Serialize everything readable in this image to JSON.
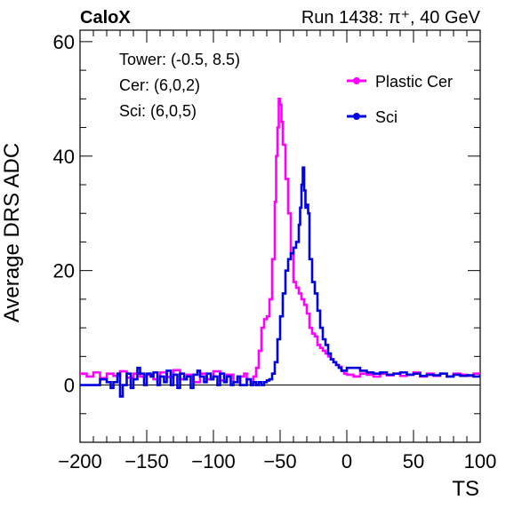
{
  "header": {
    "brand": "CaloX",
    "run_text": "Run 1438: π⁺, 40 GeV"
  },
  "annotations": [
    "Tower: (-0.5, 8.5)",
    "Cer: (6,0,2)",
    "Sci: (6,0,5)"
  ],
  "colors": {
    "plastic_cer": "#ff00ff",
    "sci": "#0000e0"
  },
  "chart_data": {
    "type": "line",
    "title": "",
    "xlabel": "TS",
    "ylabel": "Average DRS ADC",
    "xlim": [
      -200,
      100
    ],
    "ylim": [
      -10,
      62
    ],
    "x_ticks": [
      -200,
      -150,
      -100,
      -50,
      0,
      50,
      100
    ],
    "y_ticks": [
      0,
      20,
      40,
      60
    ],
    "zero_line": true,
    "legend_position": "top-right",
    "series": [
      {
        "name": "Plastic Cer",
        "color": "#ff00ff",
        "points": [
          [
            -200,
            2
          ],
          [
            -195,
            1.5
          ],
          [
            -190,
            2.2
          ],
          [
            -185,
            1.2
          ],
          [
            -180,
            2
          ],
          [
            -175,
            1.6
          ],
          [
            -170,
            2.4
          ],
          [
            -165,
            1.3
          ],
          [
            -160,
            2
          ],
          [
            -155,
            1.5
          ],
          [
            -150,
            1.8
          ],
          [
            -145,
            1
          ],
          [
            -140,
            2.2
          ],
          [
            -135,
            1.4
          ],
          [
            -130,
            2.6
          ],
          [
            -125,
            1
          ],
          [
            -120,
            1.8
          ],
          [
            -115,
            0.5
          ],
          [
            -110,
            2
          ],
          [
            -105,
            1
          ],
          [
            -100,
            2.4
          ],
          [
            -95,
            0.8
          ],
          [
            -90,
            1.8
          ],
          [
            -85,
            0.5
          ],
          [
            -80,
            1.5
          ],
          [
            -77,
            2
          ],
          [
            -75,
            1
          ],
          [
            -72,
            0.5
          ],
          [
            -70,
            1.5
          ],
          [
            -68,
            3
          ],
          [
            -66,
            6
          ],
          [
            -64,
            10
          ],
          [
            -62,
            11.5
          ],
          [
            -60,
            12
          ],
          [
            -58,
            15
          ],
          [
            -56,
            22
          ],
          [
            -54,
            32
          ],
          [
            -53,
            40
          ],
          [
            -52,
            45
          ],
          [
            -51,
            50
          ],
          [
            -50,
            49
          ],
          [
            -49,
            46
          ],
          [
            -48,
            42
          ],
          [
            -46,
            36
          ],
          [
            -44,
            30
          ],
          [
            -42,
            23
          ],
          [
            -40,
            18
          ],
          [
            -38,
            17
          ],
          [
            -36,
            16
          ],
          [
            -34,
            15
          ],
          [
            -32,
            14
          ],
          [
            -30,
            12.5
          ],
          [
            -28,
            10
          ],
          [
            -26,
            9
          ],
          [
            -24,
            8.5
          ],
          [
            -22,
            7
          ],
          [
            -20,
            6.5
          ],
          [
            -18,
            6
          ],
          [
            -16,
            5.5
          ],
          [
            -14,
            5
          ],
          [
            -12,
            4.5
          ],
          [
            -10,
            4
          ],
          [
            -8,
            3.5
          ],
          [
            -6,
            3.2
          ],
          [
            -4,
            2.5
          ],
          [
            -2,
            2
          ],
          [
            0,
            1.8
          ],
          [
            5,
            1.5
          ],
          [
            10,
            2
          ],
          [
            15,
            1.8
          ],
          [
            20,
            1.5
          ],
          [
            25,
            2
          ],
          [
            30,
            1.7
          ],
          [
            35,
            2
          ],
          [
            40,
            1.6
          ],
          [
            45,
            1.8
          ],
          [
            50,
            2.2
          ],
          [
            55,
            1.5
          ],
          [
            60,
            2
          ],
          [
            65,
            1.6
          ],
          [
            70,
            2
          ],
          [
            75,
            1.5
          ],
          [
            80,
            2
          ],
          [
            85,
            1.8
          ],
          [
            90,
            1.6
          ],
          [
            95,
            2
          ],
          [
            100,
            2.3
          ]
        ]
      },
      {
        "name": "Sci",
        "color": "#0000e0",
        "points": [
          [
            -200,
            0
          ],
          [
            -195,
            0
          ],
          [
            -190,
            0
          ],
          [
            -185,
            1
          ],
          [
            -180,
            0.5
          ],
          [
            -177,
            -0.5
          ],
          [
            -175,
            0.5
          ],
          [
            -172,
            2
          ],
          [
            -170,
            -2
          ],
          [
            -168,
            0
          ],
          [
            -165,
            2
          ],
          [
            -162,
            -0.5
          ],
          [
            -160,
            1
          ],
          [
            -157,
            3
          ],
          [
            -155,
            2
          ],
          [
            -152,
            0
          ],
          [
            -150,
            2
          ],
          [
            -147,
            1.5
          ],
          [
            -145,
            2.2
          ],
          [
            -142,
            0
          ],
          [
            -140,
            1.5
          ],
          [
            -137,
            0.5
          ],
          [
            -135,
            2.5
          ],
          [
            -132,
            0
          ],
          [
            -130,
            1.8
          ],
          [
            -127,
            -0.5
          ],
          [
            -125,
            2
          ],
          [
            -122,
            1
          ],
          [
            -120,
            1.5
          ],
          [
            -117,
            -0.5
          ],
          [
            -115,
            1.8
          ],
          [
            -112,
            2.5
          ],
          [
            -110,
            1.5
          ],
          [
            -107,
            0.5
          ],
          [
            -105,
            2
          ],
          [
            -102,
            1
          ],
          [
            -100,
            1.5
          ],
          [
            -97,
            0
          ],
          [
            -95,
            2
          ],
          [
            -92,
            0.5
          ],
          [
            -90,
            1.5
          ],
          [
            -87,
            0
          ],
          [
            -85,
            0.5
          ],
          [
            -82,
            1.5
          ],
          [
            -80,
            0
          ],
          [
            -77,
            0
          ],
          [
            -75,
            1
          ],
          [
            -72,
            0
          ],
          [
            -70,
            0.5
          ],
          [
            -68,
            0
          ],
          [
            -66,
            0.5
          ],
          [
            -64,
            0
          ],
          [
            -62,
            0.5
          ],
          [
            -60,
            0.8
          ],
          [
            -58,
            1
          ],
          [
            -56,
            2
          ],
          [
            -54,
            4
          ],
          [
            -52,
            8
          ],
          [
            -50,
            12
          ],
          [
            -48,
            16
          ],
          [
            -46,
            20
          ],
          [
            -44,
            22
          ],
          [
            -42,
            23
          ],
          [
            -40,
            24
          ],
          [
            -38,
            25
          ],
          [
            -36,
            28
          ],
          [
            -35,
            31
          ],
          [
            -34,
            35
          ],
          [
            -33,
            38
          ],
          [
            -32,
            34
          ],
          [
            -31,
            31
          ],
          [
            -30,
            31.5
          ],
          [
            -29,
            30
          ],
          [
            -28,
            22
          ],
          [
            -26,
            18
          ],
          [
            -24,
            16
          ],
          [
            -22,
            13
          ],
          [
            -20,
            10
          ],
          [
            -18,
            8
          ],
          [
            -16,
            7
          ],
          [
            -14,
            5.5
          ],
          [
            -12,
            4.5
          ],
          [
            -10,
            4
          ],
          [
            -8,
            3.5
          ],
          [
            -6,
            3
          ],
          [
            -4,
            2.5
          ],
          [
            -2,
            2.5
          ],
          [
            0,
            3
          ],
          [
            5,
            3
          ],
          [
            10,
            2.5
          ],
          [
            15,
            2.2
          ],
          [
            20,
            2
          ],
          [
            25,
            2.2
          ],
          [
            30,
            1.8
          ],
          [
            35,
            2
          ],
          [
            40,
            2.2
          ],
          [
            45,
            1.8
          ],
          [
            50,
            2
          ],
          [
            55,
            1.6
          ],
          [
            60,
            1.8
          ],
          [
            65,
            1.7
          ],
          [
            70,
            2
          ],
          [
            75,
            1.5
          ],
          [
            80,
            1.8
          ],
          [
            85,
            1.6
          ],
          [
            90,
            1.7
          ],
          [
            95,
            1.5
          ],
          [
            100,
            1.8
          ]
        ]
      }
    ]
  }
}
